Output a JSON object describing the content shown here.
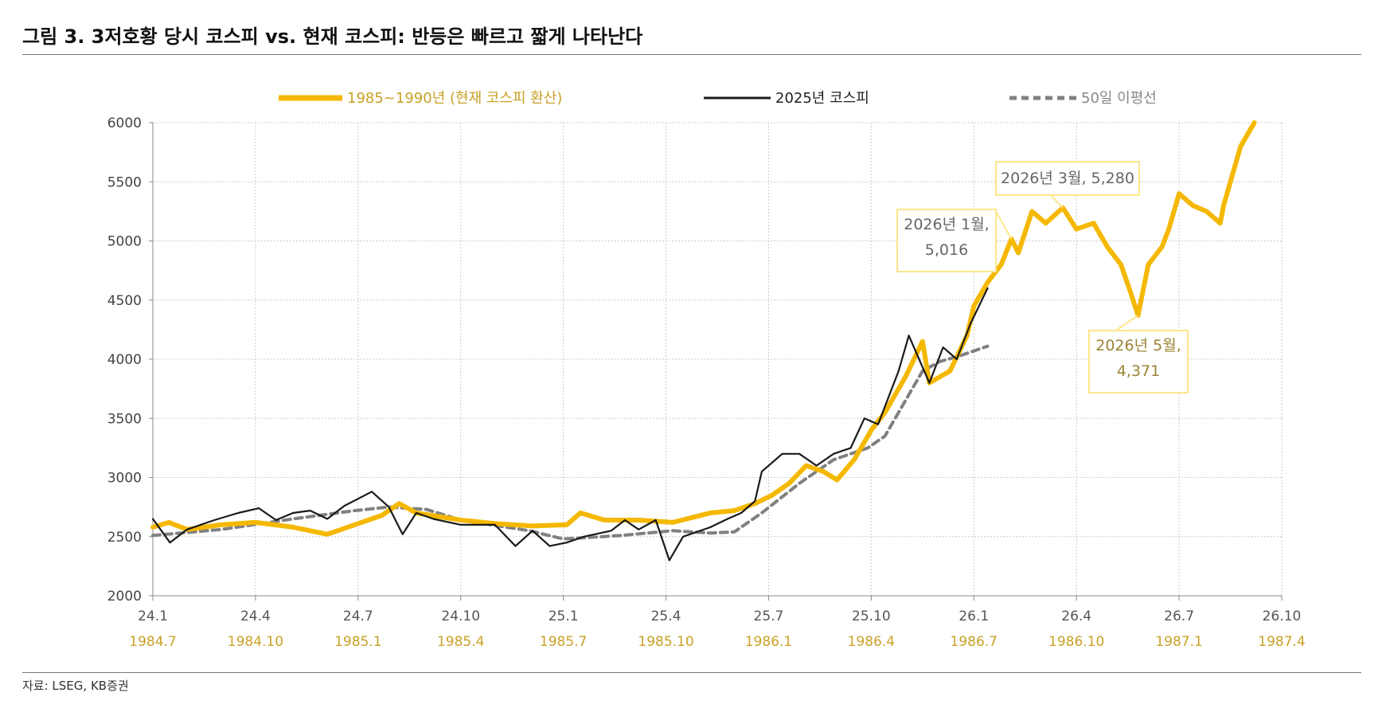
{
  "title": "그림 3. 3저호황 당시 코스피 vs. 현재 코스피: 반등은 빠르고 짧게 나타난다",
  "source": "자료: LSEG, KB증권",
  "chart_data": {
    "type": "line",
    "title": "그림 3. 3저호황 당시 코스피 vs. 현재 코스피: 반등은 빠르고 짧게 나타난다",
    "xlabel": "",
    "ylabel": "",
    "x_unit": "months since 24.1",
    "xlim": [
      0,
      33
    ],
    "ylim": [
      2000,
      6000
    ],
    "yticks": [
      "2000",
      "2500",
      "3000",
      "3500",
      "4000",
      "4500",
      "5000",
      "5500",
      "6000"
    ],
    "xticks": [
      "24.1",
      "24.4",
      "24.7",
      "24.10",
      "25.1",
      "25.4",
      "25.7",
      "25.10",
      "26.1",
      "26.4",
      "26.7",
      "26.10"
    ],
    "xticks_secondary": [
      "1984.7",
      "1984.10",
      "1985.1",
      "1985.4",
      "1985.7",
      "1985.10",
      "1986.1",
      "1986.4",
      "1986.7",
      "1986.10",
      "1987.1",
      "1987.4"
    ],
    "grid": true,
    "legend_position": "top",
    "colors": {
      "gold": "#f5b800",
      "black": "#1a1a1a",
      "ma": "#808080",
      "goldText": "#c9a227"
    },
    "series": [
      {
        "name": "1985~1990년 (현재 코스피 환산)",
        "style": "gold",
        "x": [
          0,
          0.47,
          1,
          2,
          3,
          4.1,
          5.1,
          5.9,
          6.7,
          7.2,
          7.7,
          9,
          10,
          11.1,
          12.1,
          12.5,
          13.2,
          14.2,
          15.2,
          16.3,
          17,
          17.6,
          18.1,
          18.6,
          19.1,
          19.6,
          20,
          20.5,
          21,
          21.4,
          22,
          22.5,
          22.7,
          23.3,
          23.8,
          24,
          24.4,
          24.8,
          25.1,
          25.3,
          25.7,
          26.1,
          26.6,
          27,
          27.5,
          27.9,
          28.3,
          28.6,
          28.8,
          29.1,
          29.5,
          29.7,
          30,
          30.4,
          30.8,
          31.2,
          31.3,
          31.6,
          31.8,
          32.2
        ],
        "y": [
          2580,
          2620,
          2560,
          2600,
          2620,
          2580,
          2520,
          2600,
          2680,
          2780,
          2700,
          2640,
          2610,
          2590,
          2600,
          2700,
          2640,
          2640,
          2620,
          2700,
          2720,
          2780,
          2850,
          2950,
          3100,
          3050,
          2980,
          3150,
          3400,
          3550,
          3850,
          4150,
          3800,
          3900,
          4200,
          4450,
          4650,
          4800,
          5016,
          4900,
          5250,
          5150,
          5280,
          5100,
          5150,
          4950,
          4800,
          4550,
          4371,
          4800,
          4950,
          5100,
          5400,
          5300,
          5250,
          5150,
          5300,
          5600,
          5800,
          6000
        ]
      },
      {
        "name": "2025년 코스피",
        "style": "black",
        "x": [
          0,
          0.5,
          1,
          1.8,
          2.5,
          3.1,
          3.6,
          4.1,
          4.6,
          5.1,
          5.6,
          6.2,
          6.4,
          6.9,
          7.3,
          7.7,
          8.2,
          9,
          10,
          10.6,
          11.1,
          11.6,
          12.1,
          12.6,
          13.4,
          13.8,
          14.2,
          14.7,
          15.1,
          15.5,
          16.3,
          16.8,
          17.2,
          17.6,
          17.8,
          18.4,
          18.9,
          19.4,
          19.9,
          20.4,
          20.8,
          21.2,
          21.4,
          21.8,
          22.1,
          22.4,
          22.7,
          23.1,
          23.5,
          23.9,
          24.4
        ],
        "y": [
          2650,
          2450,
          2560,
          2640,
          2700,
          2740,
          2640,
          2700,
          2720,
          2650,
          2760,
          2850,
          2880,
          2750,
          2520,
          2700,
          2650,
          2600,
          2600,
          2420,
          2550,
          2420,
          2450,
          2500,
          2550,
          2640,
          2560,
          2640,
          2300,
          2500,
          2580,
          2650,
          2700,
          2800,
          3050,
          3200,
          3200,
          3100,
          3200,
          3250,
          3500,
          3450,
          3600,
          3900,
          4200,
          4000,
          3800,
          4100,
          4000,
          4300,
          4600
        ]
      },
      {
        "name": "50일 이평선",
        "style": "ma",
        "x": [
          0,
          2,
          4.1,
          5.9,
          6.9,
          8,
          9,
          11,
          12,
          13.7,
          15.2,
          16.3,
          17,
          17.8,
          18.9,
          19.9,
          20.9,
          21.4,
          22,
          22.5,
          23,
          23.5,
          24.4
        ],
        "y": [
          2510,
          2560,
          2650,
          2720,
          2750,
          2730,
          2640,
          2550,
          2480,
          2510,
          2550,
          2530,
          2540,
          2700,
          2950,
          3150,
          3250,
          3350,
          3650,
          3900,
          3980,
          4020,
          4110
        ]
      }
    ],
    "annotations": [
      {
        "lines": [
          "2026년 1월,",
          "5,016"
        ],
        "x": 25.1,
        "y": 5016,
        "style": "grey"
      },
      {
        "lines": [
          "2026년 3월, 5,280"
        ],
        "x": 26.6,
        "y": 5280,
        "style": "grey"
      },
      {
        "lines": [
          "2026년 5월,",
          "4,371"
        ],
        "x": 28.8,
        "y": 4371,
        "style": "gold"
      }
    ]
  }
}
